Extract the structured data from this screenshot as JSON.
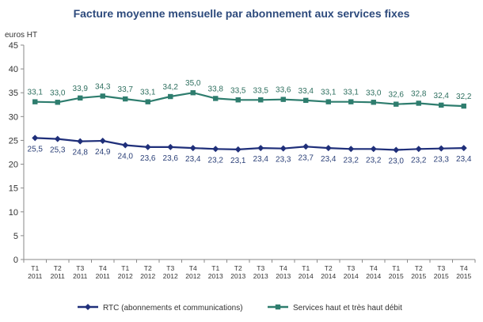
{
  "chart_data": {
    "type": "line",
    "title": "Facture moyenne mensuelle par abonnement aux services fixes",
    "ylabel": "euros HT",
    "xlabel": "",
    "ylim": [
      0,
      45
    ],
    "yticks": [
      0,
      5,
      10,
      15,
      20,
      25,
      30,
      35,
      40,
      45
    ],
    "categories": [
      [
        "T1",
        "2011"
      ],
      [
        "T2",
        "2011"
      ],
      [
        "T3",
        "2011"
      ],
      [
        "T4",
        "2011"
      ],
      [
        "T1",
        "2012"
      ],
      [
        "T2",
        "2012"
      ],
      [
        "T3",
        "2012"
      ],
      [
        "T4",
        "2012"
      ],
      [
        "T1",
        "2013"
      ],
      [
        "T2",
        "2013"
      ],
      [
        "T3",
        "2013"
      ],
      [
        "T4",
        "2013"
      ],
      [
        "T1",
        "2014"
      ],
      [
        "T2",
        "2014"
      ],
      [
        "T3",
        "2014"
      ],
      [
        "T4",
        "2014"
      ],
      [
        "T1",
        "2015"
      ],
      [
        "T2",
        "2015"
      ],
      [
        "T3",
        "2015"
      ],
      [
        "T4",
        "2015"
      ]
    ],
    "series": [
      {
        "name": "RTC (abonnements et communications)",
        "color": "#1f2f7a",
        "marker": "diamond",
        "label_position": "below",
        "values": [
          25.5,
          25.3,
          24.8,
          24.9,
          24.0,
          23.6,
          23.6,
          23.4,
          23.2,
          23.1,
          23.4,
          23.3,
          23.7,
          23.4,
          23.2,
          23.2,
          23.0,
          23.2,
          23.3,
          23.4
        ],
        "labels": [
          "25,5",
          "25,3",
          "24,8",
          "24,9",
          "24,0",
          "23,6",
          "23,6",
          "23,4",
          "23,2",
          "23,1",
          "23,4",
          "23,3",
          "23,7",
          "23,4",
          "23,2",
          "23,2",
          "23,0",
          "23,2",
          "23,3",
          "23,4"
        ]
      },
      {
        "name": "Services haut et très haut débit",
        "color": "#2e7d6e",
        "marker": "square",
        "label_position": "above",
        "values": [
          33.1,
          33.0,
          33.9,
          34.3,
          33.7,
          33.1,
          34.2,
          35.0,
          33.8,
          33.5,
          33.5,
          33.6,
          33.4,
          33.1,
          33.1,
          33.0,
          32.6,
          32.8,
          32.4,
          32.2
        ],
        "labels": [
          "33,1",
          "33,0",
          "33,9",
          "34,3",
          "33,7",
          "33,1",
          "34,2",
          "35,0",
          "33,8",
          "33,5",
          "33,5",
          "33,6",
          "33,4",
          "33,1",
          "33,1",
          "33,0",
          "32,6",
          "32,8",
          "32,4",
          "32,2"
        ]
      }
    ],
    "grid": false,
    "legend_position": "bottom"
  }
}
